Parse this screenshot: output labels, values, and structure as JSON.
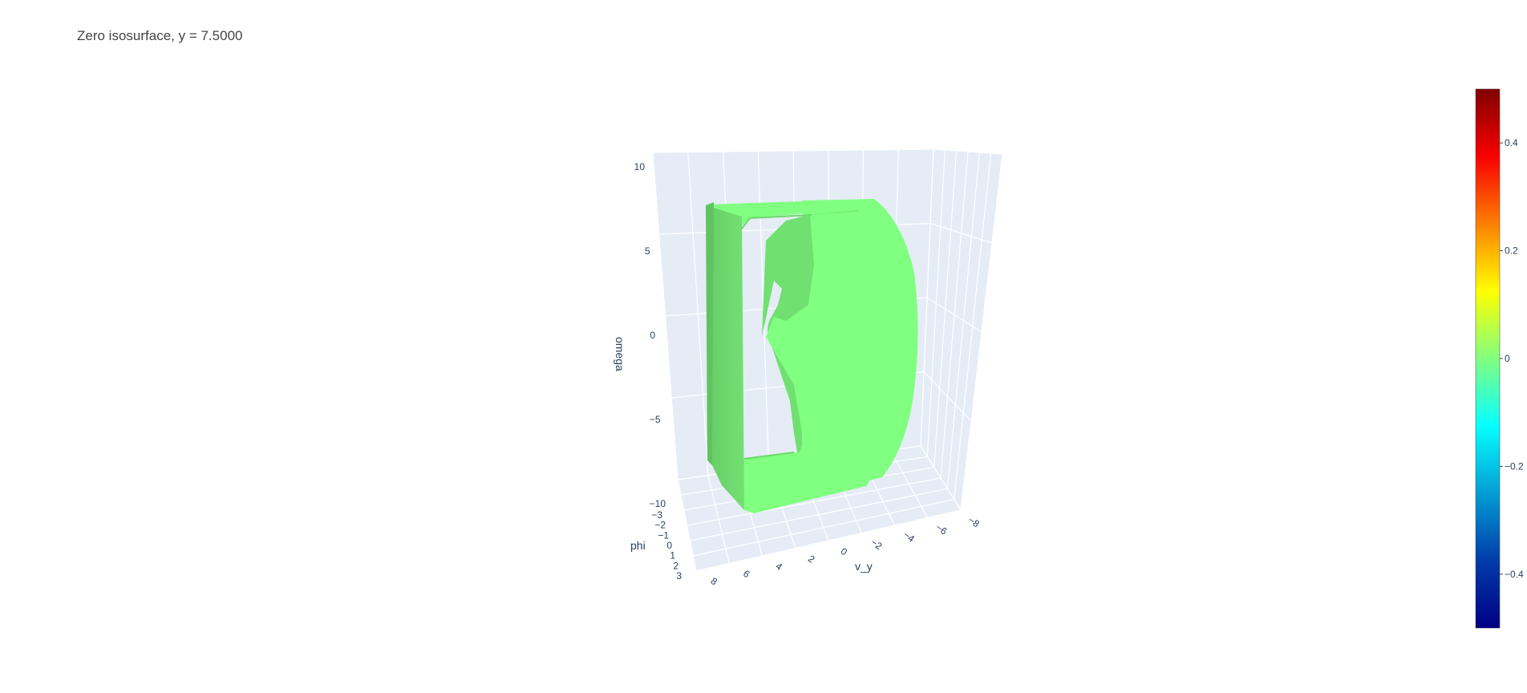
{
  "chart_data": {
    "type": "isosurface",
    "title": "Zero isosurface, y =  7.5000",
    "scene": {
      "background": "#e5ecf6",
      "grid_color": "#ffffff",
      "surface_color": "#80ff80",
      "x_axis": {
        "title": "v_y",
        "range": [
          -8,
          8
        ],
        "ticks": [
          "8",
          "6",
          "4",
          "2",
          "0",
          "−2",
          "−4",
          "−6",
          "−8"
        ]
      },
      "y_axis": {
        "title": "phi",
        "range": [
          -3,
          3
        ],
        "ticks": [
          "−3",
          "−2",
          "−1",
          "0",
          "1",
          "2",
          "3"
        ]
      },
      "z_axis": {
        "title": "omega",
        "range": [
          -10,
          10
        ],
        "ticks": [
          "10",
          "5",
          "0",
          "−5",
          "−10"
        ]
      }
    },
    "colorbar": {
      "colorscale": "Jet",
      "range": [
        -0.5,
        0.5
      ],
      "ticks": [
        "0.4",
        "0.2",
        "0",
        "−0.2",
        "−0.4"
      ],
      "tick_values": [
        0.4,
        0.2,
        0,
        -0.2,
        -0.4
      ]
    }
  }
}
